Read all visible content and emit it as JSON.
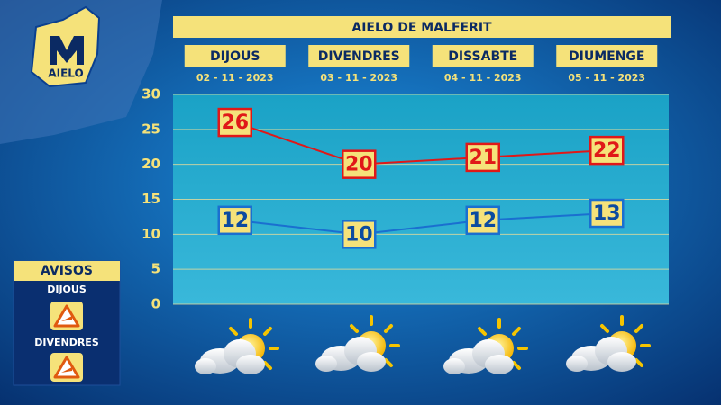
{
  "logo": "AIELO",
  "warnings": {
    "title": "AVISOS",
    "days": [
      "DIJOUS",
      "DIVENDRES"
    ]
  },
  "chart_data": {
    "type": "line",
    "title": "AIELO DE MALFERIT",
    "categories": [
      "DIJOUS",
      "DIVENDRES",
      "DISSABTE",
      "DIUMENGE"
    ],
    "dates": [
      "02 - 11 - 2023",
      "03 - 11 - 2023",
      "04 - 11 - 2023",
      "05 - 11 - 2023"
    ],
    "series": [
      {
        "color": "#e01818",
        "values": [
          26,
          20,
          21,
          22
        ]
      },
      {
        "color": "#1a6fd0",
        "values": [
          12,
          10,
          12,
          13
        ]
      }
    ],
    "ylim": [
      0,
      30
    ],
    "yticks": [
      0,
      5,
      10,
      15,
      20,
      25,
      30
    ],
    "grid": true
  }
}
